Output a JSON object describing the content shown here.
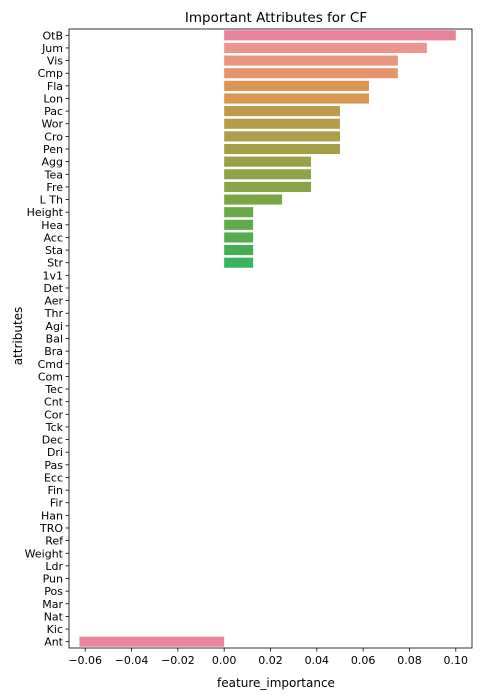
{
  "chart_data": {
    "type": "bar",
    "orientation": "horizontal",
    "title": "Important Attributes for CF",
    "xlabel": "feature_importance",
    "ylabel": "attributes",
    "xlim": [
      -0.067,
      0.107
    ],
    "xticks": [
      -0.06,
      -0.04,
      -0.02,
      0.0,
      0.02,
      0.04,
      0.06,
      0.08,
      0.1
    ],
    "xtick_labels": [
      "−0.06",
      "−0.04",
      "−0.02",
      "0.00",
      "0.02",
      "0.04",
      "0.06",
      "0.08",
      "0.10"
    ],
    "grid": false,
    "legend": "none",
    "categories": [
      "OtB",
      "Jum",
      "Vis",
      "Cmp",
      "Fla",
      "Lon",
      "Pac",
      "Wor",
      "Cro",
      "Pen",
      "Agg",
      "Tea",
      "Fre",
      "L Th",
      "Height",
      "Hea",
      "Acc",
      "Sta",
      "Str",
      "1v1",
      "Det",
      "Aer",
      "Thr",
      "Agi",
      "Bal",
      "Bra",
      "Cmd",
      "Com",
      "Tec",
      "Cnt",
      "Cor",
      "Tck",
      "Dec",
      "Dri",
      "Pas",
      "Ecc",
      "Fin",
      "Fir",
      "Han",
      "TRO",
      "Ref",
      "Weight",
      "Ldr",
      "Pun",
      "Pos",
      "Mar",
      "Nat",
      "Kic",
      "Ant"
    ],
    "values": [
      0.1,
      0.0875,
      0.075,
      0.075,
      0.0625,
      0.0625,
      0.05,
      0.05,
      0.05,
      0.05,
      0.0375,
      0.0375,
      0.0375,
      0.025,
      0.0125,
      0.0125,
      0.0125,
      0.0125,
      0.0125,
      0,
      0,
      0,
      0,
      0,
      0,
      0,
      0,
      0,
      0,
      0,
      0,
      0,
      0,
      0,
      0,
      0,
      0,
      0,
      0,
      0,
      0,
      0,
      0,
      0,
      0,
      0,
      0,
      0,
      -0.0625
    ],
    "colors": [
      "#e8829a",
      "#ec958b",
      "#ea967c",
      "#e69469",
      "#dd944f",
      "#d79652",
      "#c1994c",
      "#b69c4b",
      "#ad9e49",
      "#a49f47",
      "#9aa148",
      "#91a348",
      "#87a448",
      "#7aa648",
      "#6aa948",
      "#5fab48",
      "#52ad4d",
      "#45ae53",
      "#3bb25c",
      "#3ab162",
      "#3bb26f",
      "#3cb37a",
      "#3cb486",
      "#3db38f",
      "#3eb59b",
      "#3fb6a4",
      "#3fb7ad",
      "#3fb8b6",
      "#40b8bf",
      "#3fb7c6",
      "#42b7cf",
      "#45b9d9",
      "#4ab9e2",
      "#55b9ed",
      "#6ab8f1",
      "#7fb4f2",
      "#8eaff2",
      "#a0aaf2",
      "#b1a4f2",
      "#c39cf1",
      "#d293f1",
      "#df8def",
      "#e78ae6",
      "#ec88db",
      "#ef87d0",
      "#ef87c5",
      "#ef88b8",
      "#ef8aac",
      "#e9869e"
    ]
  }
}
